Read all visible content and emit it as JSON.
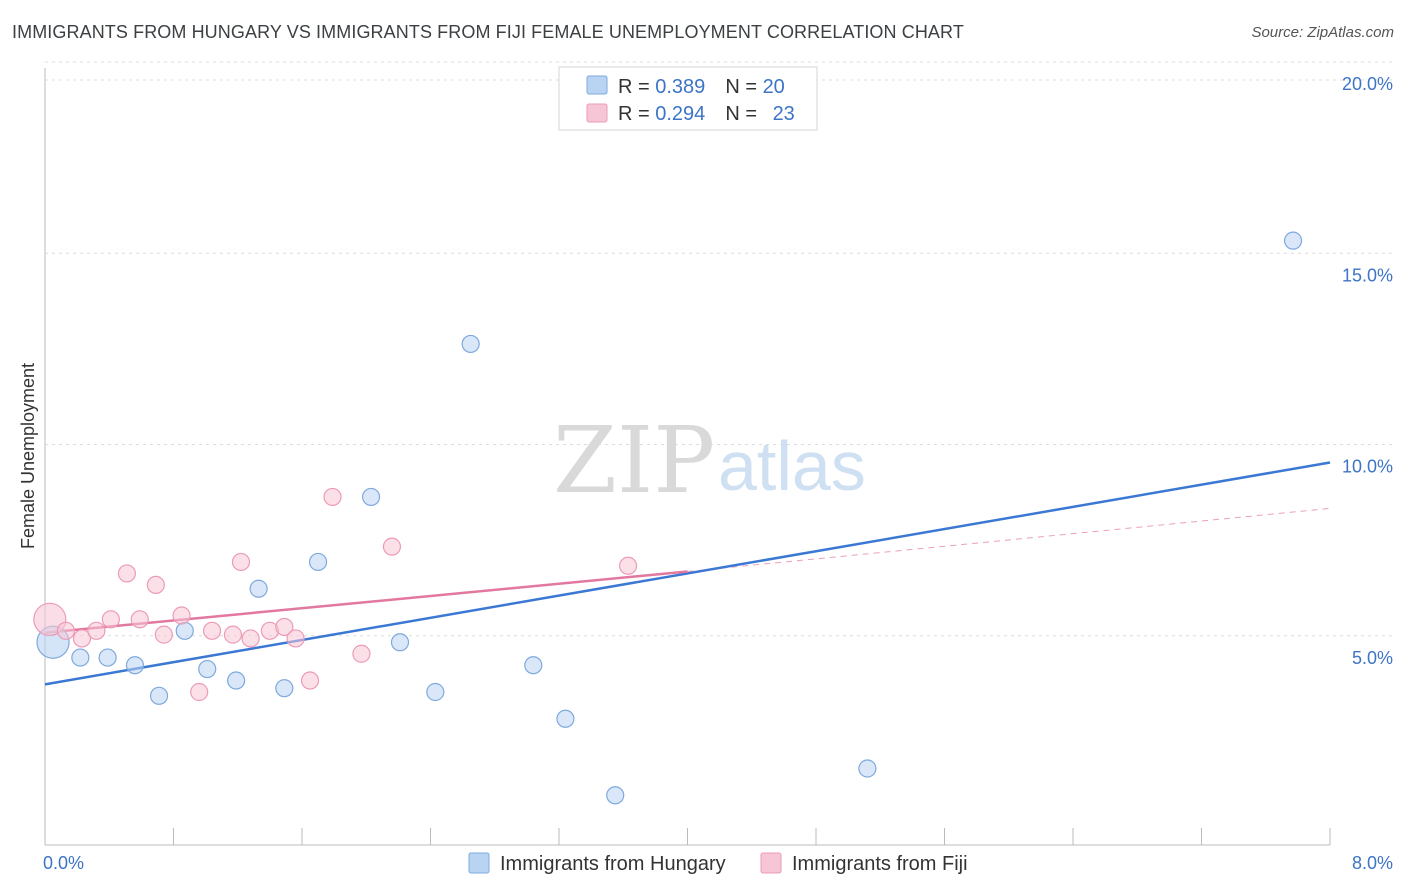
{
  "header": {
    "title": "IMMIGRANTS FROM HUNGARY VS IMMIGRANTS FROM FIJI FEMALE UNEMPLOYMENT CORRELATION CHART",
    "source": "Source: ZipAtlas.com"
  },
  "watermark": {
    "zip": "ZIP",
    "atlas": "atlas"
  },
  "chart_data": {
    "type": "scatter",
    "title": "IMMIGRANTS FROM HUNGARY VS IMMIGRANTS FROM FIJI FEMALE UNEMPLOYMENT CORRELATION CHART",
    "xlabel": "",
    "ylabel": "Female Unemployment",
    "xlim": [
      0,
      8
    ],
    "ylim": [
      0,
      20
    ],
    "x_tick_labels": [
      "0.0%",
      "8.0%"
    ],
    "y_ticks": [
      5,
      10,
      15,
      20
    ],
    "y_tick_labels": [
      "5.0%",
      "10.0%",
      "15.0%",
      "20.0%"
    ],
    "grid": true,
    "legend_position": "top-center",
    "series": [
      {
        "name": "Immigrants from Hungary",
        "color": "#3a78d4",
        "fill": "#b9d3f3",
        "stroke": "#7fa9dd",
        "R": "0.389",
        "N": "20",
        "points": [
          {
            "x": 0.05,
            "y": 5.3,
            "big": true
          },
          {
            "x": 0.22,
            "y": 4.9
          },
          {
            "x": 0.39,
            "y": 4.9
          },
          {
            "x": 0.56,
            "y": 4.7
          },
          {
            "x": 0.71,
            "y": 3.9
          },
          {
            "x": 0.87,
            "y": 5.6
          },
          {
            "x": 1.01,
            "y": 4.6
          },
          {
            "x": 1.19,
            "y": 4.3
          },
          {
            "x": 1.33,
            "y": 6.7
          },
          {
            "x": 1.49,
            "y": 4.1
          },
          {
            "x": 1.7,
            "y": 7.4
          },
          {
            "x": 2.03,
            "y": 9.1
          },
          {
            "x": 2.21,
            "y": 5.3
          },
          {
            "x": 2.43,
            "y": 4.0
          },
          {
            "x": 2.65,
            "y": 13.1
          },
          {
            "x": 3.04,
            "y": 4.7
          },
          {
            "x": 3.24,
            "y": 3.3
          },
          {
            "x": 3.55,
            "y": 1.3
          },
          {
            "x": 5.12,
            "y": 2.0
          },
          {
            "x": 7.77,
            "y": 15.8
          }
        ],
        "trend": {
          "x0": 0.0,
          "y0": 4.2,
          "x1": 8.0,
          "y1": 10.0
        }
      },
      {
        "name": "Immigrants from Fiji",
        "color": "#e2779f",
        "fill": "#f7c6d6",
        "stroke": "#ec9bb8",
        "R": "0.294",
        "N": "23",
        "points": [
          {
            "x": 0.03,
            "y": 5.9,
            "big": true
          },
          {
            "x": 0.13,
            "y": 5.6
          },
          {
            "x": 0.23,
            "y": 5.4
          },
          {
            "x": 0.32,
            "y": 5.6
          },
          {
            "x": 0.41,
            "y": 5.9
          },
          {
            "x": 0.51,
            "y": 7.1
          },
          {
            "x": 0.59,
            "y": 5.9
          },
          {
            "x": 0.69,
            "y": 6.8
          },
          {
            "x": 0.74,
            "y": 5.5
          },
          {
            "x": 0.85,
            "y": 6.0
          },
          {
            "x": 0.96,
            "y": 4.0
          },
          {
            "x": 1.04,
            "y": 5.6
          },
          {
            "x": 1.17,
            "y": 5.5
          },
          {
            "x": 1.22,
            "y": 7.4
          },
          {
            "x": 1.28,
            "y": 5.4
          },
          {
            "x": 1.4,
            "y": 5.6
          },
          {
            "x": 1.49,
            "y": 5.7
          },
          {
            "x": 1.56,
            "y": 5.4
          },
          {
            "x": 1.65,
            "y": 4.3
          },
          {
            "x": 1.79,
            "y": 9.1
          },
          {
            "x": 1.97,
            "y": 5.0
          },
          {
            "x": 2.16,
            "y": 7.8
          },
          {
            "x": 3.63,
            "y": 7.3
          }
        ],
        "trend": {
          "x0": 0.0,
          "y0": 5.55,
          "x1": 4.0,
          "y1": 7.15
        },
        "trend_ext": {
          "x0": 4.0,
          "y0": 7.15,
          "x1": 8.0,
          "y1": 8.8
        }
      }
    ]
  }
}
